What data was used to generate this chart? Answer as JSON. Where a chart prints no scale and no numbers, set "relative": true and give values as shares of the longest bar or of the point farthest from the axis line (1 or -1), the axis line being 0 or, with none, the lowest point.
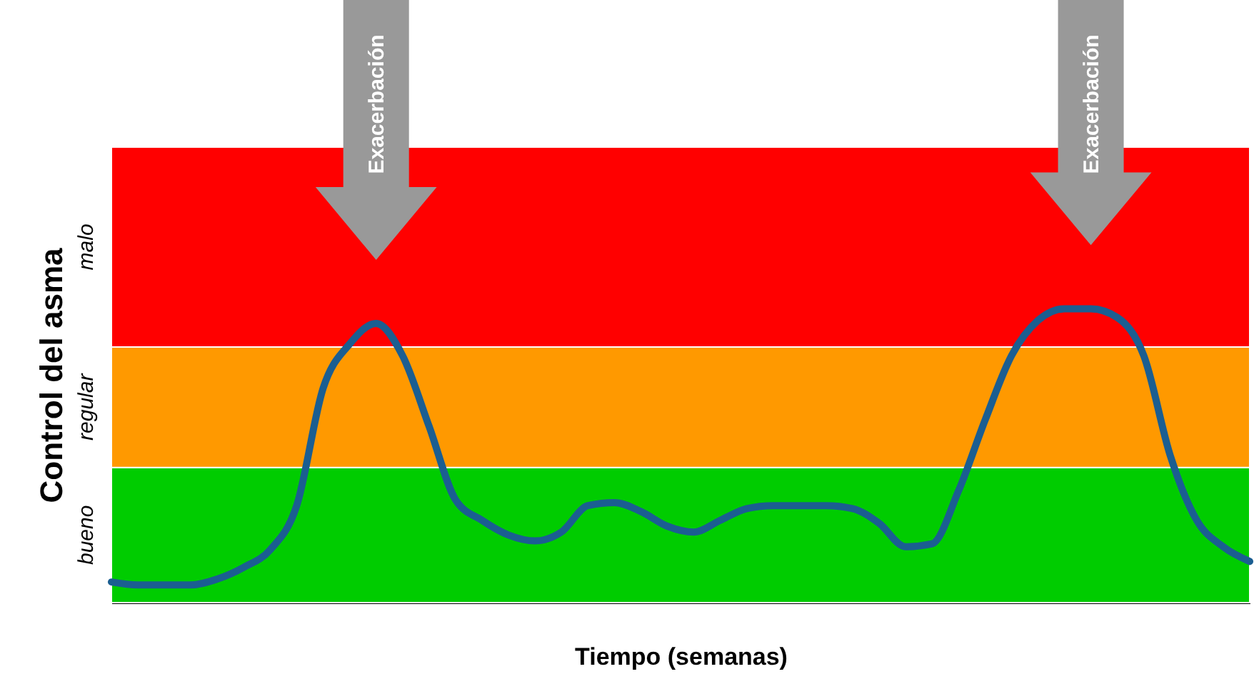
{
  "chart_data": {
    "type": "line",
    "relative": true,
    "xlabel": "Tiempo (semanas)",
    "ylabel": "Control del asma",
    "categories": [
      null,
      null,
      null,
      null,
      null,
      null,
      null,
      null,
      null,
      null,
      null,
      null,
      null,
      null,
      null,
      null,
      null,
      null,
      null,
      null,
      null,
      null,
      null,
      null,
      null,
      null,
      null,
      null,
      null,
      null,
      null,
      null,
      null,
      null,
      null,
      null,
      null,
      null,
      null,
      null,
      null,
      null,
      null,
      null
    ],
    "series": [
      {
        "color": "#1b5e91",
        "values": [
          0.07,
          0.06,
          0.06,
          0.06,
          0.08,
          0.12,
          0.18,
          0.33,
          0.73,
          0.88,
          0.95,
          0.84,
          0.6,
          0.35,
          0.28,
          0.23,
          0.21,
          0.24,
          0.33,
          0.34,
          0.31,
          0.26,
          0.24,
          0.28,
          0.32,
          0.33,
          0.33,
          0.33,
          0.32,
          0.27,
          0.19,
          0.2,
          0.38,
          0.62,
          0.84,
          0.96,
          1.0,
          1.0,
          0.97,
          0.84,
          0.5,
          0.28,
          0.19,
          0.14
        ]
      }
    ],
    "bands": [
      {
        "axis": "y",
        "from": 0,
        "to": 0.46,
        "label": "bueno",
        "color": "#00cc00"
      },
      {
        "axis": "y",
        "from": 0.46,
        "to": 0.87,
        "label": "regular",
        "color": "#ff9900"
      },
      {
        "axis": "y",
        "from": 0.87,
        "to": 1.55,
        "label": "malo",
        "color": "#ff0000"
      }
    ],
    "annotations": [
      "Exacerbación",
      "Exacerbación"
    ]
  }
}
